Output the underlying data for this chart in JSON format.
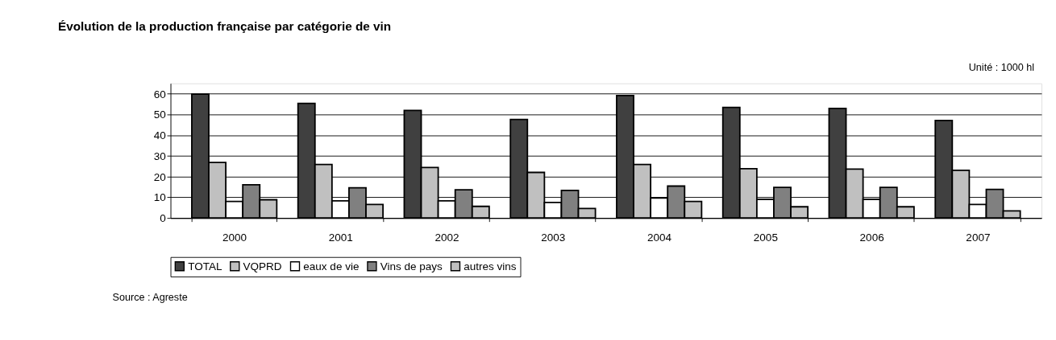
{
  "chart_data": {
    "type": "bar",
    "title": "Évolution de la production française par catégorie de vin",
    "annotations": [
      "Unité : 1000 hl",
      "Source : Agreste"
    ],
    "categories": [
      "2000",
      "2001",
      "2002",
      "2003",
      "2004",
      "2005",
      "2006",
      "2007"
    ],
    "series": [
      {
        "name": "TOTAL",
        "color": "#404040",
        "values": [
          59.8,
          55.3,
          51.9,
          47.6,
          59.1,
          53.4,
          52.9,
          47.1
        ]
      },
      {
        "name": "VQPRD",
        "color": "#c0c0c0",
        "values": [
          26.8,
          25.8,
          24.4,
          22.0,
          25.8,
          23.8,
          23.6,
          23.0
        ]
      },
      {
        "name": "eaux de vie",
        "color": "#ffffff",
        "values": [
          8.0,
          8.3,
          8.3,
          7.5,
          9.6,
          9.0,
          9.0,
          6.5
        ]
      },
      {
        "name": "Vins de pays",
        "color": "#808080",
        "values": [
          16.0,
          14.6,
          13.6,
          13.3,
          15.4,
          14.8,
          14.8,
          13.8
        ]
      },
      {
        "name": "autres vins",
        "color": "#c0c0c0",
        "values": [
          8.8,
          6.5,
          5.6,
          4.6,
          8.0,
          5.4,
          5.4,
          3.4
        ]
      }
    ],
    "ylim": [
      0,
      65
    ],
    "yticks": [
      0,
      10,
      20,
      30,
      40,
      50,
      60
    ],
    "grid": "y",
    "legend": "bottom"
  }
}
